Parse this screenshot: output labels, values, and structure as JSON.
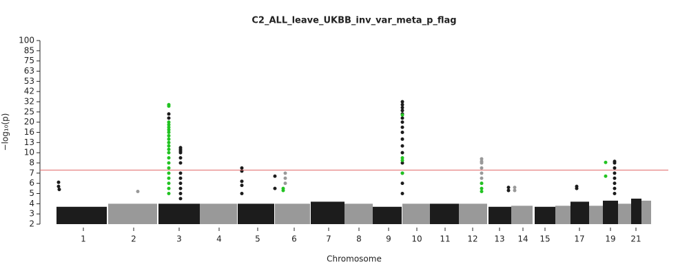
{
  "chart_data": {
    "type": "manhattan",
    "title": "C2_ALL_leave_UKBB_inv_var_meta_p_flag",
    "xlabel": "Chromosome",
    "ylabel": "−log₁₀(p)",
    "xlim": [
      0,
      912
    ],
    "xticks": [
      {
        "value": 63,
        "label": "1"
      },
      {
        "value": 136,
        "label": "2"
      },
      {
        "value": 202,
        "label": "3"
      },
      {
        "value": 260,
        "label": "4"
      },
      {
        "value": 316,
        "label": "5"
      },
      {
        "value": 369,
        "label": "6"
      },
      {
        "value": 419,
        "label": "7"
      },
      {
        "value": 463,
        "label": "8"
      },
      {
        "value": 506,
        "label": "9"
      },
      {
        "value": 547,
        "label": "10"
      },
      {
        "value": 588,
        "label": "11"
      },
      {
        "value": 628,
        "label": "12"
      },
      {
        "value": 667,
        "label": "13"
      },
      {
        "value": 701,
        "label": "14"
      },
      {
        "value": 733,
        "label": "15"
      },
      {
        "value": 783,
        "label": "17"
      },
      {
        "value": 828,
        "label": "19"
      },
      {
        "value": 865,
        "label": "21"
      }
    ],
    "ylim": [
      2,
      100
    ],
    "yticks": [
      2,
      3,
      4,
      5,
      6,
      7,
      8,
      10,
      13,
      16,
      20,
      25,
      32,
      42,
      53,
      63,
      75,
      85,
      100
    ],
    "threshold": 7.3,
    "threshold_color": "#e06666",
    "blocks": [
      {
        "x": [
          24,
          97
        ],
        "top": 3.7,
        "color": "#1c1c1c"
      },
      {
        "x": [
          99,
          170
        ],
        "top": 4,
        "color": "#999999"
      },
      {
        "x": [
          172,
          232
        ],
        "top": 4,
        "color": "#1c1c1c"
      },
      {
        "x": [
          232,
          286
        ],
        "top": 4,
        "color": "#999999"
      },
      {
        "x": [
          287,
          340
        ],
        "top": 4,
        "color": "#1c1c1c"
      },
      {
        "x": [
          341,
          392
        ],
        "top": 4,
        "color": "#999999"
      },
      {
        "x": [
          393,
          442
        ],
        "top": 4.2,
        "color": "#1c1c1c"
      },
      {
        "x": [
          442,
          483
        ],
        "top": 4,
        "color": "#999999"
      },
      {
        "x": [
          483,
          525
        ],
        "top": 3.7,
        "color": "#1c1c1c"
      },
      {
        "x": [
          526,
          566
        ],
        "top": 4,
        "color": "#999999"
      },
      {
        "x": [
          566,
          608
        ],
        "top": 4,
        "color": "#1c1c1c"
      },
      {
        "x": [
          608,
          649
        ],
        "top": 4,
        "color": "#999999"
      },
      {
        "x": [
          651,
          684
        ],
        "top": 3.7,
        "color": "#1c1c1c"
      },
      {
        "x": [
          684,
          715
        ],
        "top": 3.8,
        "color": "#999999"
      },
      {
        "x": [
          718,
          748
        ],
        "top": 3.7,
        "color": "#1c1c1c"
      },
      {
        "x": [
          748,
          770
        ],
        "top": 3.8,
        "color": "#999999"
      },
      {
        "x": [
          770,
          797
        ],
        "top": 4.2,
        "color": "#1c1c1c"
      },
      {
        "x": [
          797,
          817
        ],
        "top": 3.8,
        "color": "#999999"
      },
      {
        "x": [
          817,
          839
        ],
        "top": 4.3,
        "color": "#1c1c1c"
      },
      {
        "x": [
          839,
          858
        ],
        "top": 4,
        "color": "#999999"
      },
      {
        "x": [
          858,
          873
        ],
        "top": 4.5,
        "color": "#1c1c1c"
      },
      {
        "x": [
          873,
          887
        ],
        "top": 4.3,
        "color": "#999999"
      }
    ],
    "series": [
      {
        "color": "#1c1c1c",
        "x": [
          27,
          27,
          28,
          187,
          187,
          204,
          204,
          204,
          204,
          204,
          204,
          204,
          204,
          204,
          204,
          204,
          204,
          293,
          293,
          293,
          293,
          293,
          341,
          341,
          526,
          526,
          526,
          526,
          526,
          526,
          526,
          526,
          526,
          526,
          526,
          526,
          526,
          526,
          526,
          526,
          680,
          680,
          779,
          779,
          834,
          834,
          834,
          834,
          834,
          834,
          834,
          834
        ],
        "values": [
          6.1,
          5.7,
          5.4,
          24,
          22,
          11.5,
          11,
          10.5,
          10,
          9,
          8,
          7,
          6.5,
          6,
          5.5,
          5,
          4.5,
          7.5,
          7.2,
          6.2,
          5.8,
          5,
          6.7,
          5.5,
          32,
          30,
          28,
          26,
          24,
          22,
          20,
          18,
          16,
          14,
          12,
          10,
          8,
          7,
          6,
          5,
          5.6,
          5.3,
          5.7,
          5.5,
          8.3,
          8,
          7.5,
          7,
          6.5,
          6,
          5.5,
          5
        ]
      },
      {
        "color": "#999999",
        "x": [
          142,
          356,
          356,
          356,
          641,
          641,
          641,
          641,
          641,
          641,
          641,
          689,
          689
        ],
        "values": [
          5.2,
          7,
          6.5,
          6,
          8.8,
          8.3,
          8,
          7.5,
          7,
          6.5,
          6,
          5.6,
          5.3
        ]
      },
      {
        "color": "#22c322",
        "x": [
          187,
          187,
          187,
          187,
          187,
          187,
          187,
          187,
          187,
          187,
          187,
          187,
          187,
          187,
          187,
          187,
          187,
          187,
          187,
          187,
          187,
          353,
          353,
          526,
          526,
          526,
          526,
          641,
          641,
          641,
          821,
          821
        ],
        "values": [
          30,
          29,
          20,
          19,
          18,
          17,
          16,
          15,
          14,
          13,
          12,
          11,
          10,
          9,
          8,
          7.5,
          7,
          6.5,
          6,
          5.5,
          5,
          5.5,
          5.3,
          23.5,
          9,
          8.5,
          7,
          6,
          5.5,
          5.2,
          8.1,
          6.7
        ]
      }
    ]
  }
}
